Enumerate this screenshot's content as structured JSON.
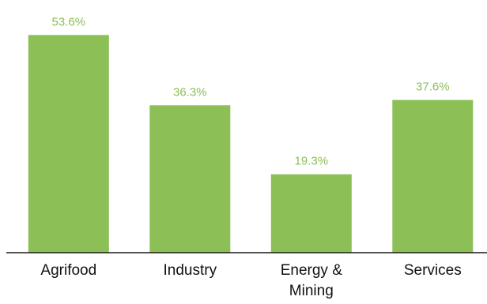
{
  "chart_data": {
    "type": "bar",
    "categories": [
      [
        "Agrifood"
      ],
      [
        "Industry"
      ],
      [
        "Energy &",
        "Mining"
      ],
      [
        "Services"
      ]
    ],
    "values": [
      53.6,
      36.3,
      19.3,
      37.6
    ],
    "value_labels": [
      "53.6%",
      "36.3%",
      "19.3%",
      "37.6%"
    ],
    "ylim": [
      0,
      56
    ],
    "grid": false,
    "bar_color": "#8cc056",
    "value_label_color": "#8cc056",
    "axis_color": "#1a1a1a"
  }
}
